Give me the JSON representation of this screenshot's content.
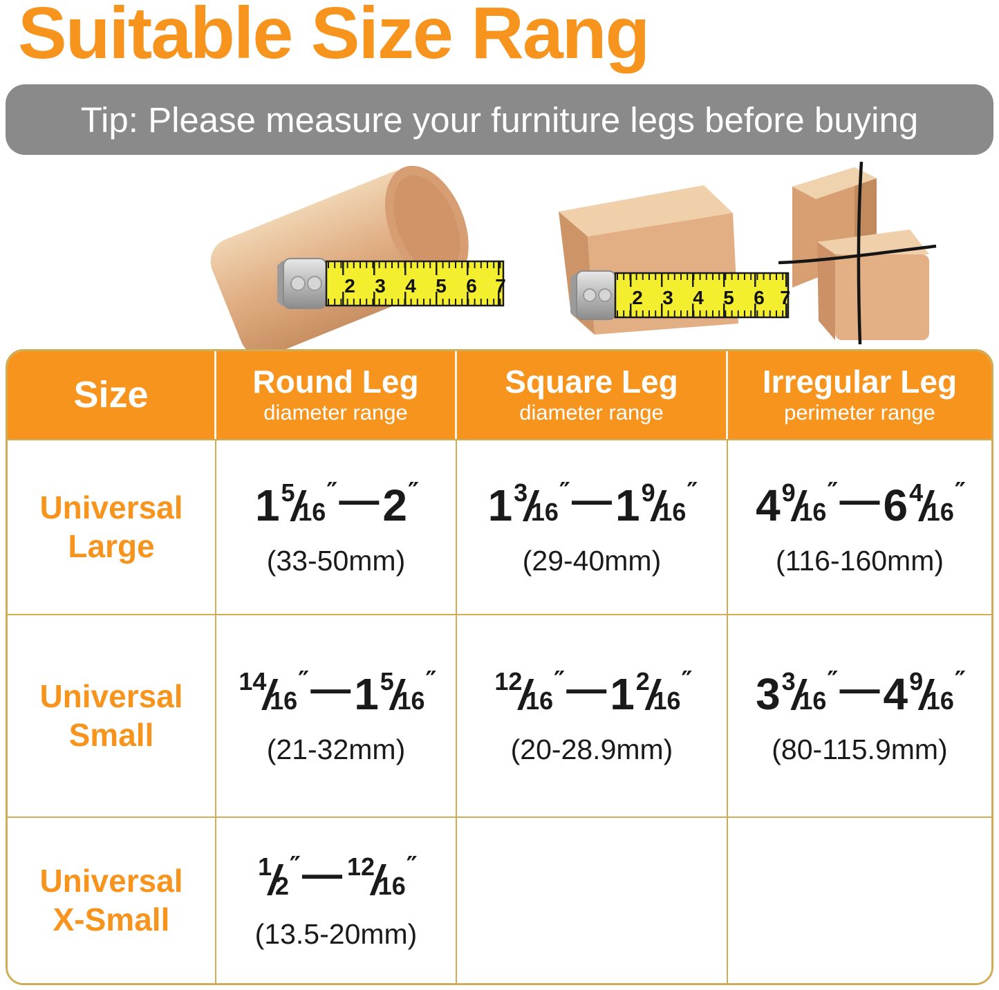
{
  "page": {
    "title": "Suitable Size Rang",
    "tip": "Tip: Please measure your furniture legs before buying"
  },
  "photos": {
    "round": {
      "caption": "round wooden leg with tape measure",
      "tape_numbers": [
        "2",
        "3",
        "4",
        "5",
        "6",
        "7"
      ]
    },
    "square": {
      "caption": "square wooden leg with tape measure",
      "tape_numbers": [
        "2",
        "3",
        "4",
        "5",
        "6",
        "7"
      ]
    },
    "irregular": {
      "caption": "irregular wooden corner leg with string"
    }
  },
  "table": {
    "headers": [
      {
        "label": "Size",
        "sub": ""
      },
      {
        "label": "Round Leg",
        "sub": "diameter range"
      },
      {
        "label": "Square Leg",
        "sub": "diameter range"
      },
      {
        "label": "Irregular Leg",
        "sub": "perimeter range"
      }
    ],
    "separator": "—",
    "unit": "″",
    "rows": [
      {
        "size": [
          "Universal",
          "Large"
        ],
        "cells": [
          {
            "from": {
              "whole": "1",
              "num": "5",
              "den": "16"
            },
            "to": {
              "whole": "2"
            },
            "mm": "(33-50mm)"
          },
          {
            "from": {
              "whole": "1",
              "num": "3",
              "den": "16"
            },
            "to": {
              "whole": "1",
              "num": "9",
              "den": "16"
            },
            "mm": "(29-40mm)"
          },
          {
            "from": {
              "whole": "4",
              "num": "9",
              "den": "16"
            },
            "to": {
              "whole": "6",
              "num": "4",
              "den": "16"
            },
            "mm": "(116-160mm)"
          }
        ]
      },
      {
        "size": [
          "Universal",
          "Small"
        ],
        "cells": [
          {
            "from": {
              "num": "14",
              "den": "16"
            },
            "to": {
              "whole": "1",
              "num": "5",
              "den": "16"
            },
            "mm": "(21-32mm)"
          },
          {
            "from": {
              "num": "12",
              "den": "16"
            },
            "to": {
              "whole": "1",
              "num": "2",
              "den": "16"
            },
            "mm": "(20-28.9mm)"
          },
          {
            "from": {
              "whole": "3",
              "num": "3",
              "den": "16"
            },
            "to": {
              "whole": "4",
              "num": "9",
              "den": "16"
            },
            "mm": "(80-115.9mm)"
          }
        ]
      },
      {
        "size": [
          "Universal",
          "X-Small"
        ],
        "cells": [
          {
            "from": {
              "num": "1",
              "den": "2"
            },
            "to": {
              "num": "12",
              "den": "16"
            },
            "mm": "(13.5-20mm)"
          },
          null,
          null
        ]
      }
    ]
  },
  "colors": {
    "accent_orange": "#F7941E",
    "banner_gray": "#8A8A8A",
    "table_border_gold": "#CFAC55",
    "tape_yellow": "#F3EE2E",
    "text_black": "#1A1A1A",
    "wood": "#E0AE83"
  }
}
